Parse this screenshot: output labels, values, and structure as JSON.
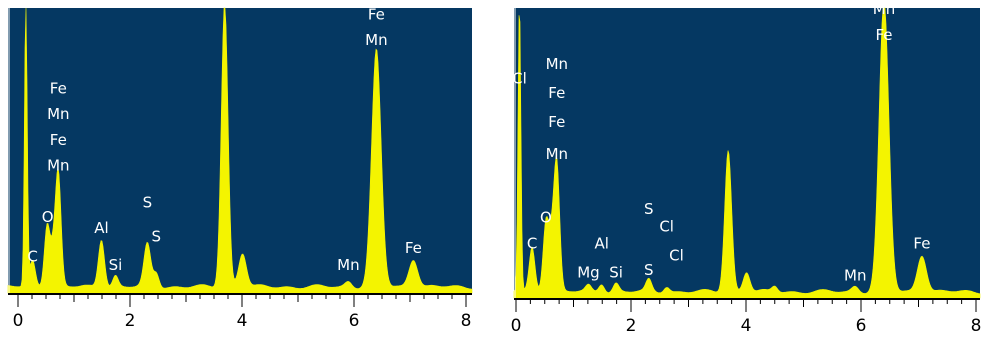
{
  "chart_data": [
    {
      "type": "area",
      "title": "",
      "xlabel": "",
      "ylabel": "",
      "xlim": [
        0,
        8
      ],
      "ylim": [
        0,
        100
      ],
      "x_ticks": [
        0,
        2,
        4,
        6,
        8
      ],
      "x_tick_labels": [
        "0",
        "2",
        "4",
        "6",
        "8"
      ],
      "grid": false,
      "colors": {
        "background": "#053862",
        "spectrum": "#f4f400",
        "label": "#ffffff"
      },
      "peaks": [
        {
          "x": 0.14,
          "height": 100,
          "width": 0.025
        },
        {
          "x": 0.26,
          "height": 9,
          "width": 0.05
        },
        {
          "x": 0.52,
          "height": 22,
          "width": 0.05
        },
        {
          "x": 0.63,
          "height": 12,
          "width": 0.05
        },
        {
          "x": 0.72,
          "height": 39,
          "width": 0.05
        },
        {
          "x": 1.49,
          "height": 17,
          "width": 0.055
        },
        {
          "x": 1.74,
          "height": 4,
          "width": 0.05
        },
        {
          "x": 2.31,
          "height": 15,
          "width": 0.06
        },
        {
          "x": 2.47,
          "height": 5,
          "width": 0.05
        },
        {
          "x": 3.69,
          "height": 100,
          "width": 0.06
        },
        {
          "x": 4.01,
          "height": 12,
          "width": 0.07
        },
        {
          "x": 5.9,
          "height": 2,
          "width": 0.06
        },
        {
          "x": 6.4,
          "height": 83,
          "width": 0.085
        },
        {
          "x": 7.06,
          "height": 10,
          "width": 0.08
        }
      ],
      "annotations": [
        {
          "text": "Fe",
          "x": 0.72,
          "y": 70
        },
        {
          "text": "Mn",
          "x": 0.72,
          "y": 61
        },
        {
          "text": "Fe",
          "x": 0.72,
          "y": 52
        },
        {
          "text": "Mn",
          "x": 0.72,
          "y": 43
        },
        {
          "text": "O",
          "x": 0.53,
          "y": 25
        },
        {
          "text": "C",
          "x": 0.26,
          "y": 11
        },
        {
          "text": "Al",
          "x": 1.49,
          "y": 21
        },
        {
          "text": "Si",
          "x": 1.74,
          "y": 8
        },
        {
          "text": "S",
          "x": 2.31,
          "y": 30
        },
        {
          "text": "S",
          "x": 2.47,
          "y": 18
        },
        {
          "text": "Mn",
          "x": 5.9,
          "y": 8
        },
        {
          "text": "Fe",
          "x": 6.4,
          "y": 96
        },
        {
          "text": "Mn",
          "x": 6.4,
          "y": 87
        },
        {
          "text": "Fe",
          "x": 7.06,
          "y": 14
        }
      ]
    },
    {
      "type": "area",
      "title": "",
      "xlabel": "",
      "ylabel": "",
      "xlim": [
        0,
        8
      ],
      "ylim": [
        0,
        100
      ],
      "x_ticks": [
        0,
        2,
        4,
        6,
        8
      ],
      "x_tick_labels": [
        "0",
        "2",
        "4",
        "6",
        "8"
      ],
      "grid": false,
      "colors": {
        "background": "#053862",
        "spectrum": "#f4f400",
        "label": "#ffffff"
      },
      "peaks": [
        {
          "x": 0.06,
          "height": 100,
          "width": 0.025
        },
        {
          "x": 0.28,
          "height": 15,
          "width": 0.05
        },
        {
          "x": 0.52,
          "height": 24,
          "width": 0.05
        },
        {
          "x": 0.62,
          "height": 16,
          "width": 0.05
        },
        {
          "x": 0.71,
          "height": 43,
          "width": 0.05
        },
        {
          "x": 1.26,
          "height": 2,
          "width": 0.05
        },
        {
          "x": 1.49,
          "height": 3,
          "width": 0.05
        },
        {
          "x": 1.74,
          "height": 3,
          "width": 0.05
        },
        {
          "x": 2.31,
          "height": 4,
          "width": 0.05
        },
        {
          "x": 2.62,
          "height": 2,
          "width": 0.05
        },
        {
          "x": 3.69,
          "height": 49,
          "width": 0.06
        },
        {
          "x": 4.01,
          "height": 7,
          "width": 0.06
        },
        {
          "x": 4.5,
          "height": 2,
          "width": 0.05
        },
        {
          "x": 5.9,
          "height": 2,
          "width": 0.06
        },
        {
          "x": 6.4,
          "height": 100,
          "width": 0.085
        },
        {
          "x": 7.06,
          "height": 13,
          "width": 0.08
        }
      ],
      "annotations": [
        {
          "text": "Mn",
          "x": 0.71,
          "y": 79
        },
        {
          "text": "Cl",
          "x": 0.06,
          "y": 74
        },
        {
          "text": "Fe",
          "x": 0.71,
          "y": 69
        },
        {
          "text": "Fe",
          "x": 0.71,
          "y": 59
        },
        {
          "text": "Mn",
          "x": 0.71,
          "y": 48
        },
        {
          "text": "O",
          "x": 0.52,
          "y": 26
        },
        {
          "text": "C",
          "x": 0.28,
          "y": 17
        },
        {
          "text": "Al",
          "x": 1.49,
          "y": 17
        },
        {
          "text": "Mg",
          "x": 1.26,
          "y": 7
        },
        {
          "text": "Si",
          "x": 1.74,
          "y": 7
        },
        {
          "text": "S",
          "x": 2.31,
          "y": 29
        },
        {
          "text": "Cl",
          "x": 2.62,
          "y": 23
        },
        {
          "text": "Cl",
          "x": 2.79,
          "y": 13
        },
        {
          "text": "S",
          "x": 2.31,
          "y": 8
        },
        {
          "text": "Mn",
          "x": 5.9,
          "y": 6
        },
        {
          "text": "Mn",
          "x": 6.4,
          "y": 98
        },
        {
          "text": "Fe",
          "x": 6.4,
          "y": 89
        },
        {
          "text": "Fe",
          "x": 7.06,
          "y": 17
        }
      ]
    }
  ]
}
